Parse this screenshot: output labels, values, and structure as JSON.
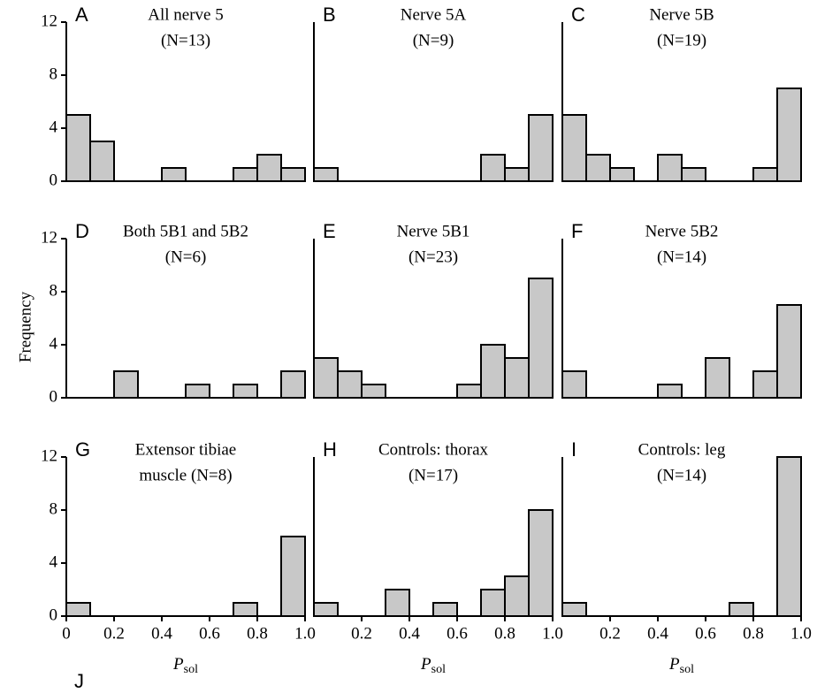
{
  "ylabel": "Frequency",
  "figure_label": "J",
  "chart_data": [
    {
      "type": "histogram",
      "label": "A",
      "title": [
        "All nerve 5",
        "(N=13)"
      ],
      "bins": [
        0,
        0.1,
        0.2,
        0.3,
        0.4,
        0.5,
        0.6,
        0.7,
        0.8,
        0.9,
        1
      ],
      "counts": [
        5,
        3,
        0,
        0,
        1,
        0,
        0,
        1,
        2,
        1
      ],
      "color": "#c8c8c8",
      "xlim": [
        0,
        1
      ],
      "ylim": [
        0,
        12
      ],
      "yticks": [
        0,
        4,
        8,
        12
      ]
    },
    {
      "type": "histogram",
      "label": "B",
      "title": [
        "Nerve 5A",
        "(N=9)"
      ],
      "bins": [
        0,
        0.1,
        0.2,
        0.3,
        0.4,
        0.5,
        0.6,
        0.7,
        0.8,
        0.9,
        1
      ],
      "counts": [
        1,
        0,
        0,
        0,
        0,
        0,
        0,
        2,
        1,
        5
      ],
      "color": "#c8c8c8",
      "xlim": [
        0,
        1
      ],
      "ylim": [
        0,
        12
      ]
    },
    {
      "type": "histogram",
      "label": "C",
      "title": [
        "Nerve 5B",
        "(N=19)"
      ],
      "bins": [
        0,
        0.1,
        0.2,
        0.3,
        0.4,
        0.5,
        0.6,
        0.7,
        0.8,
        0.9,
        1
      ],
      "counts": [
        5,
        2,
        1,
        0,
        2,
        1,
        0,
        0,
        1,
        7
      ],
      "color": "#c8c8c8",
      "xlim": [
        0,
        1
      ],
      "ylim": [
        0,
        12
      ]
    },
    {
      "type": "histogram",
      "label": "D",
      "title": [
        "Both 5B1 and 5B2",
        "(N=6)"
      ],
      "bins": [
        0,
        0.1,
        0.2,
        0.3,
        0.4,
        0.5,
        0.6,
        0.7,
        0.8,
        0.9,
        1
      ],
      "counts": [
        0,
        0,
        2,
        0,
        0,
        1,
        0,
        1,
        0,
        2
      ],
      "color": "#c8c8c8",
      "xlim": [
        0,
        1
      ],
      "ylim": [
        0,
        12
      ],
      "yticks": [
        0,
        4,
        8,
        12
      ]
    },
    {
      "type": "histogram",
      "label": "E",
      "title": [
        "Nerve 5B1",
        "(N=23)"
      ],
      "bins": [
        0,
        0.1,
        0.2,
        0.3,
        0.4,
        0.5,
        0.6,
        0.7,
        0.8,
        0.9,
        1
      ],
      "counts": [
        3,
        2,
        1,
        0,
        0,
        0,
        1,
        4,
        3,
        9
      ],
      "color": "#c8c8c8",
      "xlim": [
        0,
        1
      ],
      "ylim": [
        0,
        12
      ]
    },
    {
      "type": "histogram",
      "label": "F",
      "title": [
        "Nerve 5B2",
        "(N=14)"
      ],
      "bins": [
        0,
        0.1,
        0.2,
        0.3,
        0.4,
        0.5,
        0.6,
        0.7,
        0.8,
        0.9,
        1
      ],
      "counts": [
        2,
        0,
        0,
        0,
        1,
        0,
        3,
        0,
        2,
        7
      ],
      "color": "#c8c8c8",
      "xlim": [
        0,
        1
      ],
      "ylim": [
        0,
        12
      ]
    },
    {
      "type": "histogram",
      "label": "G",
      "title": [
        "Extensor tibiae",
        "muscle (N=8)"
      ],
      "bins": [
        0,
        0.1,
        0.2,
        0.3,
        0.4,
        0.5,
        0.6,
        0.7,
        0.8,
        0.9,
        1
      ],
      "counts": [
        1,
        0,
        0,
        0,
        0,
        0,
        0,
        1,
        0,
        6
      ],
      "color": "#c8c8c8",
      "xlim": [
        0,
        1
      ],
      "ylim": [
        0,
        12
      ],
      "yticks": [
        0,
        4,
        8,
        12
      ],
      "xticks": [
        0,
        0.2,
        0.4,
        0.6,
        0.8,
        {
          "value": 1,
          "label": "1.0"
        }
      ],
      "xlabel": {
        "main": "P",
        "sub": "sol"
      }
    },
    {
      "type": "histogram",
      "label": "H",
      "title": [
        "Controls: thorax",
        "(N=17)"
      ],
      "bins": [
        0,
        0.1,
        0.2,
        0.3,
        0.4,
        0.5,
        0.6,
        0.7,
        0.8,
        0.9,
        1
      ],
      "counts": [
        1,
        0,
        0,
        2,
        0,
        1,
        0,
        2,
        3,
        8
      ],
      "color": "#c8c8c8",
      "xlim": [
        0,
        1
      ],
      "ylim": [
        0,
        12
      ],
      "xticks": [
        0.2,
        0.4,
        0.6,
        0.8,
        {
          "value": 1,
          "label": "1.0"
        }
      ],
      "xlabel": {
        "main": "P",
        "sub": "sol"
      }
    },
    {
      "type": "histogram",
      "label": "I",
      "title": [
        "Controls: leg",
        "(N=14)"
      ],
      "bins": [
        0,
        0.1,
        0.2,
        0.3,
        0.4,
        0.5,
        0.6,
        0.7,
        0.8,
        0.9,
        1
      ],
      "counts": [
        1,
        0,
        0,
        0,
        0,
        0,
        0,
        1,
        0,
        12
      ],
      "color": "#c8c8c8",
      "xlim": [
        0,
        1
      ],
      "ylim": [
        0,
        12
      ],
      "xticks": [
        0.2,
        0.4,
        0.6,
        0.8,
        {
          "value": 1,
          "label": "1.0"
        }
      ],
      "xlabel": {
        "main": "P",
        "sub": "sol"
      }
    }
  ]
}
